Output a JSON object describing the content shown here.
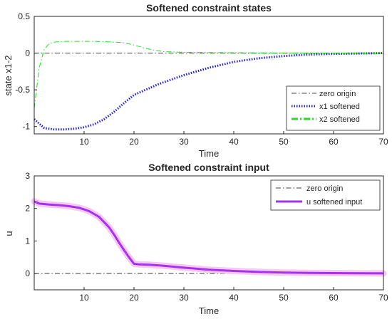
{
  "chart_data": [
    {
      "type": "line",
      "title": "Softened constraint states",
      "xlabel": "Time",
      "ylabel": "state x1-2",
      "xlim": [
        0,
        70
      ],
      "ylim": [
        -1.1,
        0.5
      ],
      "xticks": [
        10,
        20,
        30,
        40,
        50,
        60,
        70
      ],
      "yticks": [
        -1,
        -0.5,
        0,
        0.5
      ],
      "xtick_labels": [
        "10",
        "20",
        "30",
        "40",
        "50",
        "60",
        "70"
      ],
      "ytick_labels": [
        "-1",
        "-0.5",
        "0",
        "0.5"
      ],
      "legend_position": "bottom-right",
      "series": [
        {
          "name": "zero origin",
          "color": "#404040",
          "style": "dashdot",
          "x": [
            0,
            70
          ],
          "y": [
            0,
            0
          ]
        },
        {
          "name": "x1 softened",
          "color": "#1f1fd6",
          "style": "dotted",
          "x": [
            0,
            2,
            4,
            6,
            8,
            10,
            12,
            14,
            16,
            18,
            20,
            25,
            30,
            35,
            40,
            45,
            50,
            55,
            60,
            65,
            70
          ],
          "y": [
            -0.9,
            -1.02,
            -1.04,
            -1.04,
            -1.03,
            -1.01,
            -0.97,
            -0.9,
            -0.8,
            -0.68,
            -0.57,
            -0.42,
            -0.3,
            -0.2,
            -0.12,
            -0.07,
            -0.04,
            -0.02,
            -0.01,
            -0.005,
            0
          ]
        },
        {
          "name": "x2 softened",
          "color": "#22dd22",
          "style": "dashdot",
          "x": [
            0,
            1,
            2,
            3,
            4,
            6,
            8,
            10,
            12,
            14,
            16,
            18,
            20,
            22,
            24,
            26,
            30,
            40,
            50,
            60,
            70
          ],
          "y": [
            -0.75,
            -0.2,
            0.05,
            0.13,
            0.15,
            0.16,
            0.16,
            0.16,
            0.16,
            0.155,
            0.15,
            0.14,
            0.11,
            0.07,
            0.04,
            0.02,
            0.01,
            0.005,
            0.002,
            0.001,
            0
          ]
        }
      ]
    },
    {
      "type": "line",
      "title": "Softened constraint input",
      "xlabel": "Time",
      "ylabel": "u",
      "xlim": [
        0,
        70
      ],
      "ylim": [
        -0.5,
        3
      ],
      "xticks": [
        10,
        20,
        30,
        40,
        50,
        60,
        70
      ],
      "yticks": [
        0,
        1,
        2,
        3
      ],
      "xtick_labels": [
        "10",
        "20",
        "30",
        "40",
        "50",
        "60",
        "70"
      ],
      "ytick_labels": [
        "0",
        "1",
        "2",
        "3"
      ],
      "legend_position": "top-right",
      "series": [
        {
          "name": "zero origin",
          "color": "#404040",
          "style": "dashdot",
          "x": [
            0,
            70
          ],
          "y": [
            0,
            0
          ]
        },
        {
          "name": "u softened input",
          "color": "#a632f0",
          "band_color": "#f6c9f3",
          "style": "solid",
          "x": [
            0,
            1,
            3,
            5,
            7,
            9,
            11,
            13,
            15,
            16,
            17,
            18,
            19,
            20,
            21,
            23,
            26,
            30,
            35,
            40,
            45,
            50,
            55,
            60,
            65,
            70
          ],
          "y": [
            2.22,
            2.15,
            2.12,
            2.1,
            2.07,
            2.02,
            1.92,
            1.74,
            1.42,
            1.2,
            0.95,
            0.72,
            0.5,
            0.3,
            0.28,
            0.27,
            0.24,
            0.18,
            0.12,
            0.08,
            0.05,
            0.03,
            0.02,
            0.015,
            0.01,
            0.005
          ]
        }
      ]
    }
  ]
}
